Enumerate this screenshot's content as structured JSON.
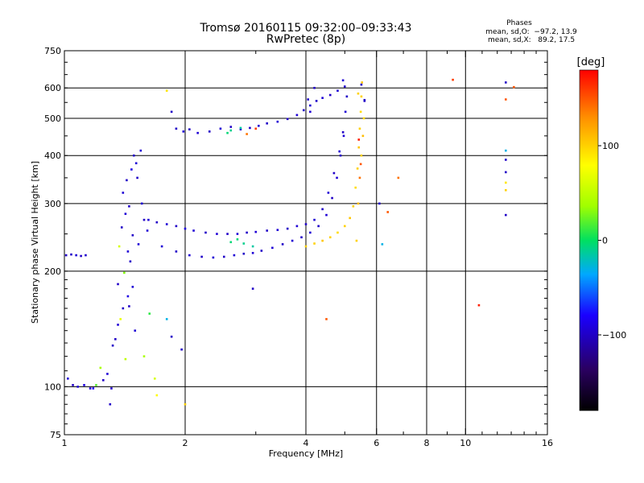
{
  "header": {
    "title": "Tromsø 20160115 09:32:00–09:33:43",
    "subtitle": "RwPretec (8p)",
    "stats_heading": "Phases",
    "stats_line1": "mean, sd,O:  −97.2, 13.9",
    "stats_line2": "mean, sd,X:   89.2, 17.5"
  },
  "colorbar": {
    "unit_label": "[deg]",
    "range": [
      -180,
      180
    ],
    "ticks": [
      {
        "value": 100,
        "label": "100"
      },
      {
        "value": 0,
        "label": "0"
      },
      {
        "value": -100,
        "label": "−100"
      }
    ]
  },
  "chart_data": {
    "type": "scatter",
    "title": "",
    "xlabel": "Frequency [MHz]",
    "ylabel": "Stationary phase Virtual Height [km]",
    "xscale": "log",
    "yscale": "log",
    "xlim": [
      1,
      16
    ],
    "ylim": [
      75,
      750
    ],
    "xticks": [
      {
        "v": 1,
        "label": "1"
      },
      {
        "v": 2,
        "label": "2"
      },
      {
        "v": 4,
        "label": "4"
      },
      {
        "v": 6,
        "label": "6"
      },
      {
        "v": 8,
        "label": "8"
      },
      {
        "v": 10,
        "label": "10"
      },
      {
        "v": 16,
        "label": "16"
      }
    ],
    "yticks": [
      {
        "v": 75,
        "label": "75"
      },
      {
        "v": 100,
        "label": "100"
      },
      {
        "v": 200,
        "label": "200"
      },
      {
        "v": 300,
        "label": "300"
      },
      {
        "v": 400,
        "label": "400"
      },
      {
        "v": 500,
        "label": "500"
      },
      {
        "v": 600,
        "label": "600"
      },
      {
        "v": 750,
        "label": "750"
      }
    ],
    "grid": true,
    "color_encoding": "phase in degrees",
    "points": [
      [
        1.01,
        220,
        -100
      ],
      [
        1.04,
        221,
        -100
      ],
      [
        1.07,
        220,
        -95
      ],
      [
        1.1,
        219,
        -100
      ],
      [
        1.13,
        220,
        -98
      ],
      [
        1.02,
        105,
        -95
      ],
      [
        1.05,
        101,
        -100
      ],
      [
        1.08,
        100,
        -95
      ],
      [
        1.12,
        101,
        -90
      ],
      [
        1.16,
        99,
        -95
      ],
      [
        1.2,
        101,
        20
      ],
      [
        1.25,
        104,
        -100
      ],
      [
        1.28,
        108,
        -95
      ],
      [
        1.31,
        99,
        -100
      ],
      [
        1.23,
        112,
        40
      ],
      [
        1.18,
        99,
        -80
      ],
      [
        1.32,
        128,
        -100
      ],
      [
        1.36,
        145,
        -95
      ],
      [
        1.4,
        160,
        -100
      ],
      [
        1.44,
        172,
        -90
      ],
      [
        1.48,
        182,
        -95
      ],
      [
        1.36,
        185,
        -100
      ],
      [
        1.41,
        198,
        30
      ],
      [
        1.46,
        212,
        -100
      ],
      [
        1.44,
        225,
        -95
      ],
      [
        1.37,
        232,
        60
      ],
      [
        1.39,
        260,
        -100
      ],
      [
        1.42,
        282,
        -95
      ],
      [
        1.45,
        295,
        -100
      ],
      [
        1.4,
        320,
        -95
      ],
      [
        1.43,
        345,
        -100
      ],
      [
        1.47,
        368,
        -90
      ],
      [
        1.51,
        382,
        -95
      ],
      [
        1.49,
        400,
        -100
      ],
      [
        1.55,
        412,
        -95
      ],
      [
        1.52,
        350,
        -100
      ],
      [
        1.56,
        300,
        -95
      ],
      [
        1.58,
        272,
        -100
      ],
      [
        1.61,
        255,
        -95
      ],
      [
        1.48,
        248,
        -100
      ],
      [
        1.53,
        235,
        -95
      ],
      [
        1.38,
        150,
        70
      ],
      [
        1.45,
        162,
        -100
      ],
      [
        1.5,
        140,
        -95
      ],
      [
        1.42,
        118,
        50
      ],
      [
        1.34,
        133,
        -100
      ],
      [
        1.58,
        120,
        40
      ],
      [
        1.68,
        105,
        60
      ],
      [
        1.85,
        135,
        -100
      ],
      [
        1.96,
        125,
        -100
      ],
      [
        1.62,
        272,
        -95
      ],
      [
        1.7,
        268,
        -100
      ],
      [
        1.8,
        265,
        -95
      ],
      [
        1.9,
        262,
        -100
      ],
      [
        2.0,
        258,
        -90
      ],
      [
        2.1,
        255,
        -95
      ],
      [
        2.25,
        252,
        -100
      ],
      [
        2.4,
        250,
        -95
      ],
      [
        2.55,
        250,
        -100
      ],
      [
        2.7,
        250,
        -95
      ],
      [
        2.85,
        252,
        -100
      ],
      [
        3.0,
        253,
        -95
      ],
      [
        3.2,
        255,
        -100
      ],
      [
        3.4,
        256,
        -95
      ],
      [
        3.6,
        258,
        -100
      ],
      [
        3.8,
        262,
        -95
      ],
      [
        4.0,
        265,
        -100
      ],
      [
        4.2,
        272,
        -95
      ],
      [
        4.4,
        290,
        -100
      ],
      [
        4.55,
        320,
        -95
      ],
      [
        4.7,
        360,
        -100
      ],
      [
        4.85,
        410,
        -95
      ],
      [
        4.95,
        460,
        -100
      ],
      [
        5.02,
        520,
        -95
      ],
      [
        5.06,
        570,
        -100
      ],
      [
        1.75,
        232,
        -95
      ],
      [
        1.9,
        225,
        -100
      ],
      [
        2.05,
        220,
        -95
      ],
      [
        2.2,
        218,
        -100
      ],
      [
        2.35,
        217,
        -95
      ],
      [
        2.5,
        218,
        -100
      ],
      [
        2.65,
        220,
        -95
      ],
      [
        2.8,
        222,
        -100
      ],
      [
        2.95,
        223,
        -95
      ],
      [
        3.1,
        226,
        -100
      ],
      [
        3.3,
        230,
        -95
      ],
      [
        3.5,
        235,
        -100
      ],
      [
        3.7,
        240,
        -95
      ],
      [
        3.9,
        245,
        -100
      ],
      [
        4.1,
        252,
        -95
      ],
      [
        4.3,
        262,
        -100
      ],
      [
        4.5,
        280,
        -95
      ],
      [
        4.65,
        310,
        -100
      ],
      [
        4.78,
        350,
        -95
      ],
      [
        4.88,
        400,
        -100
      ],
      [
        4.97,
        450,
        -95
      ],
      [
        2.6,
        238,
        -5
      ],
      [
        2.8,
        236,
        -10
      ],
      [
        2.95,
        232,
        -15
      ],
      [
        2.7,
        242,
        -5
      ],
      [
        1.9,
        470,
        -100
      ],
      [
        1.98,
        462,
        -95
      ],
      [
        2.05,
        468,
        -100
      ],
      [
        2.15,
        458,
        -95
      ],
      [
        2.3,
        462,
        -100
      ],
      [
        2.45,
        470,
        -95
      ],
      [
        2.6,
        475,
        -100
      ],
      [
        2.75,
        468,
        -95
      ],
      [
        2.9,
        472,
        -100
      ],
      [
        3.05,
        478,
        -95
      ],
      [
        3.2,
        485,
        -100
      ],
      [
        3.4,
        490,
        -95
      ],
      [
        3.6,
        498,
        -100
      ],
      [
        3.8,
        510,
        -95
      ],
      [
        3.95,
        525,
        -100
      ],
      [
        4.1,
        540,
        -95
      ],
      [
        4.25,
        555,
        -100
      ],
      [
        4.4,
        565,
        -95
      ],
      [
        4.6,
        575,
        -100
      ],
      [
        4.8,
        590,
        -95
      ],
      [
        5.0,
        605,
        -100
      ],
      [
        4.95,
        628,
        -95
      ],
      [
        2.6,
        465,
        -10
      ],
      [
        2.75,
        472,
        -15
      ],
      [
        2.55,
        458,
        -5
      ],
      [
        2.85,
        455,
        140
      ],
      [
        3.0,
        470,
        160
      ],
      [
        4.0,
        232,
        100
      ],
      [
        4.2,
        236,
        100
      ],
      [
        4.4,
        240,
        105
      ],
      [
        4.6,
        245,
        100
      ],
      [
        4.8,
        252,
        95
      ],
      [
        5.0,
        262,
        100
      ],
      [
        5.15,
        275,
        105
      ],
      [
        5.25,
        295,
        100
      ],
      [
        5.32,
        330,
        95
      ],
      [
        5.38,
        370,
        100
      ],
      [
        5.42,
        420,
        105
      ],
      [
        5.45,
        470,
        100
      ],
      [
        5.48,
        520,
        95
      ],
      [
        5.5,
        570,
        100
      ],
      [
        5.52,
        620,
        105
      ],
      [
        5.35,
        240,
        100
      ],
      [
        5.4,
        300,
        110
      ],
      [
        5.45,
        350,
        140
      ],
      [
        5.5,
        400,
        100
      ],
      [
        5.55,
        450,
        110
      ],
      [
        5.58,
        500,
        95
      ],
      [
        5.6,
        555,
        -100
      ],
      [
        5.42,
        440,
        170
      ],
      [
        5.48,
        380,
        150
      ],
      [
        5.6,
        558,
        -100
      ],
      [
        5.5,
        612,
        -100
      ],
      [
        5.4,
        580,
        100
      ],
      [
        4.05,
        560,
        -100
      ],
      [
        4.1,
        520,
        -95
      ],
      [
        4.2,
        600,
        -100
      ],
      [
        4.5,
        150,
        150
      ],
      [
        2.95,
        180,
        -100
      ],
      [
        6.2,
        235,
        -30
      ],
      [
        6.4,
        285,
        150
      ],
      [
        6.8,
        350,
        140
      ],
      [
        6.1,
        300,
        -100
      ],
      [
        9.3,
        630,
        160
      ],
      [
        10.8,
        163,
        170
      ],
      [
        12.6,
        620,
        -100
      ],
      [
        12.6,
        560,
        150
      ],
      [
        12.6,
        412,
        -30
      ],
      [
        12.6,
        390,
        -100
      ],
      [
        12.6,
        362,
        -100
      ],
      [
        12.6,
        340,
        90
      ],
      [
        12.6,
        325,
        100
      ],
      [
        12.6,
        280,
        -100
      ],
      [
        13.2,
        603,
        150
      ],
      [
        1.85,
        520,
        -100
      ],
      [
        1.8,
        590,
        90
      ],
      [
        1.63,
        155,
        10
      ],
      [
        1.8,
        150,
        -30
      ],
      [
        1.7,
        95,
        80
      ],
      [
        1.3,
        90,
        -100
      ],
      [
        2.0,
        90,
        100
      ]
    ]
  }
}
